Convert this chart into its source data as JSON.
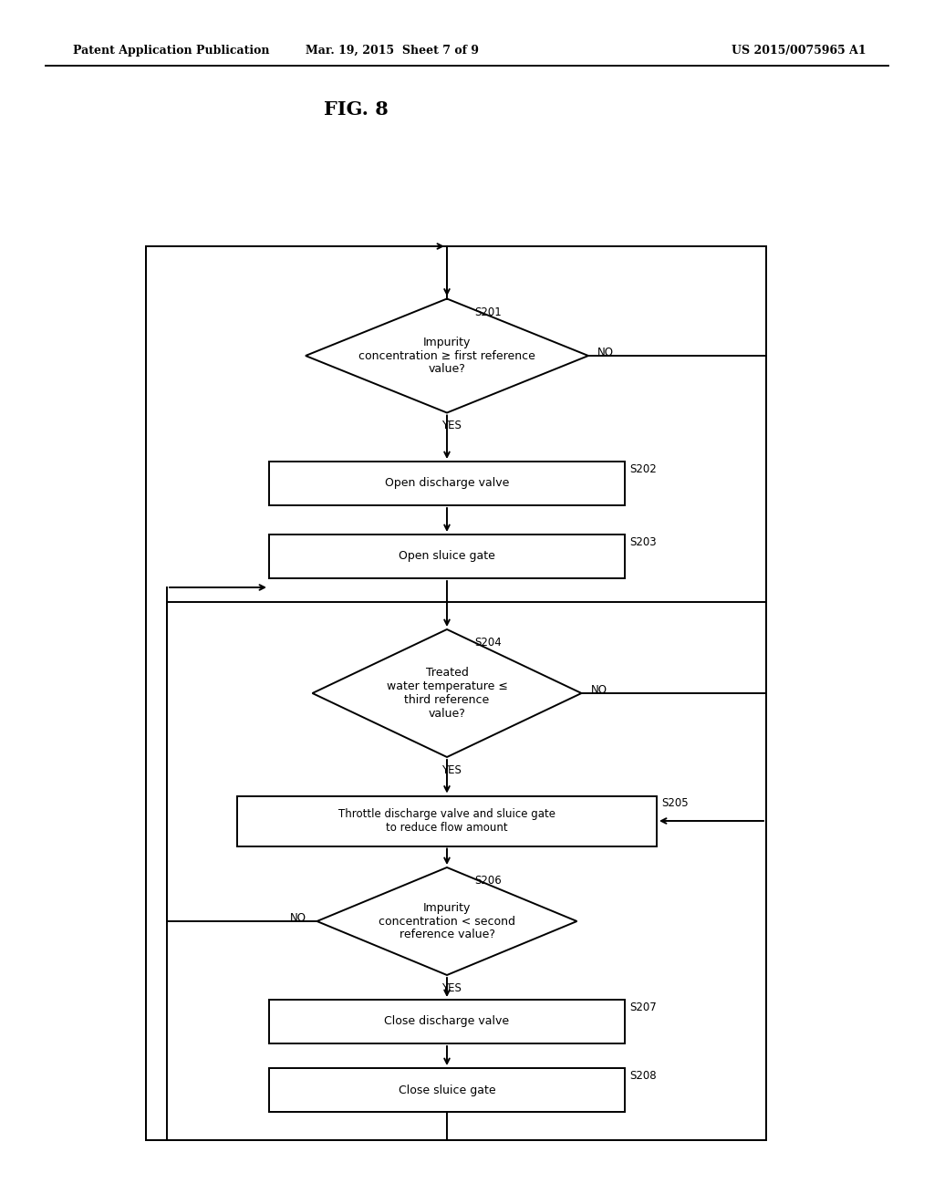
{
  "title": "FIG. 8",
  "header_left": "Patent Application Publication",
  "header_mid": "Mar. 19, 2015  Sheet 7 of 9",
  "header_right": "US 2015/0075965 A1",
  "background_color": "#ffffff",
  "line_color": "#000000",
  "text_color": "#000000",
  "S201_label": "Impurity\nconcentration ≥ first reference\nvalue?",
  "S202_label": "Open discharge valve",
  "S203_label": "Open sluice gate",
  "S204_label": "Treated\nwater temperature ≤\nthird reference\nvalue?",
  "S205_label": "Throttle discharge valve and sluice gate\nto reduce flow amount",
  "S206_label": "Impurity\nconcentration < second\nreference value?",
  "S207_label": "Close discharge valve",
  "S208_label": "Close sluice gate",
  "font_size_node": 9,
  "font_size_id": 8.5,
  "font_size_header": 9,
  "font_size_title": 15,
  "yes_no_fontsize": 8.5
}
